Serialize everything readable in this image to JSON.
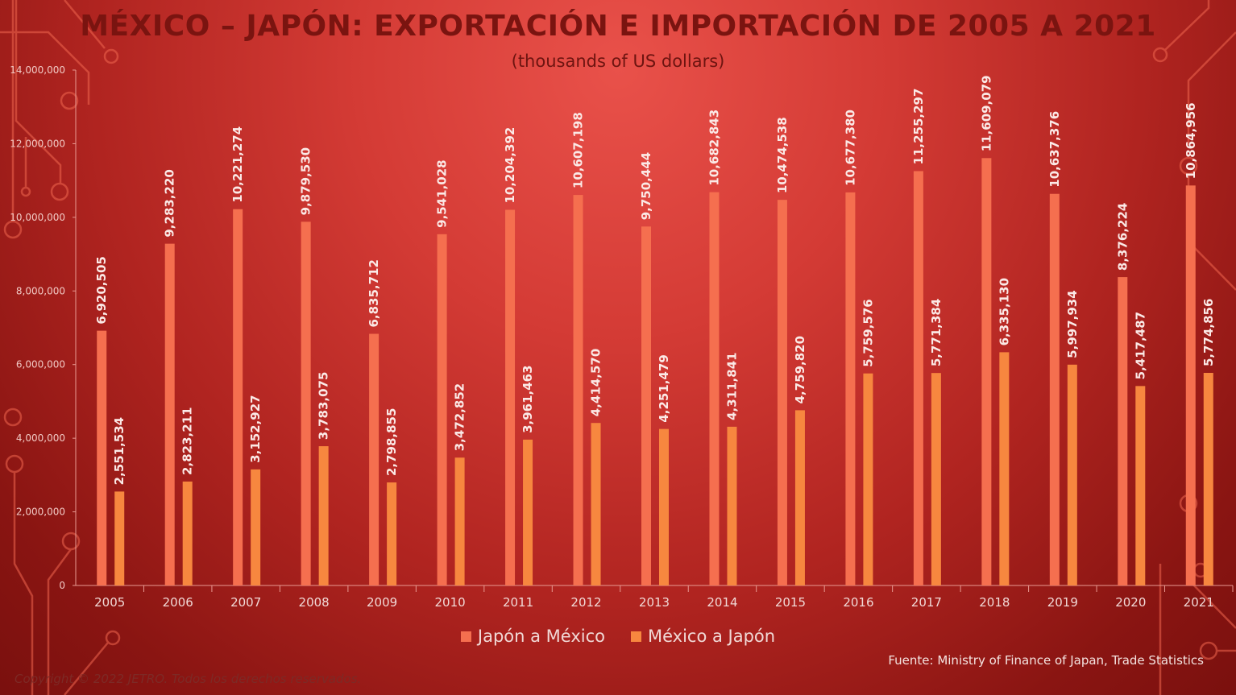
{
  "title": "MÉXICO – JAPÓN: EXPORTACIÓN E IMPORTACIÓN DE 2005 A 2021",
  "subtitle": "(thousands of US dollars)",
  "source": "Fuente: Ministry of Finance of Japan, Trade Statistics",
  "copyright": "Copyright © 2022 JETRO. Todos los derechos reservados.",
  "colors": {
    "japon_a_mexico": "#f56f4f",
    "mexico_a_japon": "#f7873f",
    "axis_text": "#f1d9d6",
    "title": "#7a1410"
  },
  "chart_data": {
    "type": "bar",
    "categories": [
      "2005",
      "2006",
      "2007",
      "2008",
      "2009",
      "2010",
      "2011",
      "2012",
      "2013",
      "2014",
      "2015",
      "2016",
      "2017",
      "2018",
      "2019",
      "2020",
      "2021"
    ],
    "series": [
      {
        "name": "Japón a México",
        "values": [
          6920505,
          9283220,
          10221274,
          9879530,
          6835712,
          9541028,
          10204392,
          10607198,
          9750444,
          10682843,
          10474538,
          10677380,
          11255297,
          11609079,
          10637376,
          8376224,
          10864956
        ],
        "labels": [
          "6,920,505",
          "9,283,220",
          "10,221,274",
          "9,879,530",
          "6,835,712",
          "9,541,028",
          "10,204,392",
          "10,607,198",
          "9,750,444",
          "10,682,843",
          "10,474,538",
          "10,677,380",
          "11,255,297",
          "11,609,079",
          "10,637,376",
          "8,376,224",
          "10,864,956"
        ]
      },
      {
        "name": "México a Japón",
        "values": [
          2551534,
          2823211,
          3152927,
          3783075,
          2798855,
          3472852,
          3961463,
          4414570,
          4251479,
          4311841,
          4759820,
          5759576,
          5771384,
          6335130,
          5997934,
          5417487,
          5774856
        ],
        "labels": [
          "2,551,534",
          "2,823,211",
          "3,152,927",
          "3,783,075",
          "2,798,855",
          "3,472,852",
          "3,961,463",
          "4,414,570",
          "4,251,479",
          "4,311,841",
          "4,759,820",
          "5,759,576",
          "5,771,384",
          "6,335,130",
          "5,997,934",
          "5,417,487",
          "5,774,856"
        ]
      }
    ],
    "ylim": [
      0,
      14000000
    ],
    "yticks": [
      "0",
      "2,000,000",
      "4,000,000",
      "6,000,000",
      "8,000,000",
      "10,000,000",
      "12,000,000",
      "14,000,000"
    ],
    "grid": false,
    "legend": "bottom"
  }
}
